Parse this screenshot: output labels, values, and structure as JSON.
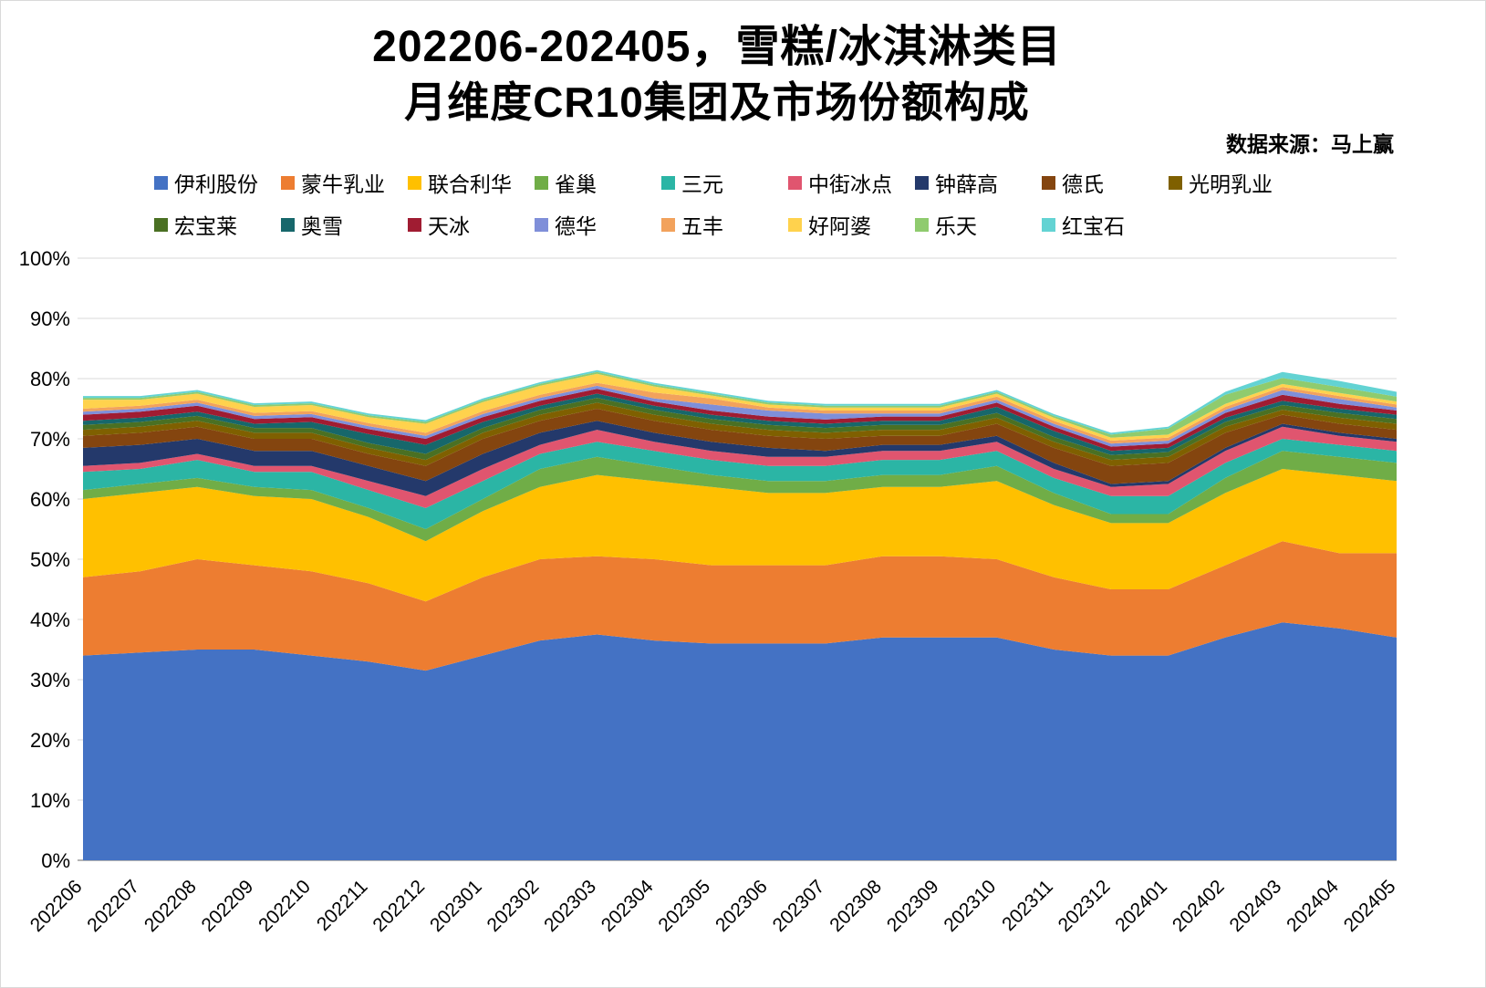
{
  "title": {
    "line1": "202206-202405，雪糕/冰淇淋类目",
    "line2": "月维度CR10集团及市场份额构成"
  },
  "source_note": "数据来源：马上赢",
  "chart_data": {
    "type": "area",
    "stacked": true,
    "grid": true,
    "legend_position": "top",
    "ylim": [
      0,
      100
    ],
    "y_ticks": [
      "0%",
      "10%",
      "20%",
      "30%",
      "40%",
      "50%",
      "60%",
      "70%",
      "80%",
      "90%",
      "100%"
    ],
    "categories": [
      "202206",
      "202207",
      "202208",
      "202209",
      "202210",
      "202211",
      "202212",
      "202301",
      "202302",
      "202303",
      "202304",
      "202305",
      "202306",
      "202307",
      "202308",
      "202309",
      "202310",
      "202311",
      "202312",
      "202401",
      "202402",
      "202403",
      "202404",
      "202405"
    ],
    "series": [
      {
        "name": "伊利股份",
        "color": "#4472C4",
        "values": [
          34,
          34.5,
          35,
          35,
          34,
          33,
          31.5,
          34,
          36.5,
          37.5,
          36.5,
          36,
          36,
          36,
          37,
          37,
          37,
          35,
          34,
          34,
          37,
          39.5,
          38.5,
          37
        ]
      },
      {
        "name": "蒙牛乳业",
        "color": "#ED7D31",
        "values": [
          13,
          13.5,
          15,
          14,
          14,
          13,
          11.5,
          13,
          13.5,
          13,
          13.5,
          13,
          13,
          13,
          13.5,
          13.5,
          13,
          12,
          11,
          11,
          12,
          13.5,
          12.5,
          14
        ]
      },
      {
        "name": "联合利华",
        "color": "#FFC000",
        "values": [
          13,
          13,
          12,
          11.5,
          12,
          11,
          10,
          11,
          12,
          13.5,
          13,
          13,
          12,
          12,
          11.5,
          11.5,
          13,
          12,
          11,
          11,
          12,
          12,
          13,
          12
        ]
      },
      {
        "name": "雀巢",
        "color": "#70AD47",
        "values": [
          1.5,
          1.5,
          1.5,
          1.5,
          1.5,
          1.5,
          2,
          2,
          3,
          3,
          2.5,
          2,
          2,
          2,
          2,
          2,
          2.5,
          2,
          1.5,
          1.5,
          2.5,
          3,
          3,
          3
        ]
      },
      {
        "name": "三元",
        "color": "#2BB5A5",
        "values": [
          3,
          2.5,
          3,
          2.5,
          3,
          3,
          3.5,
          3,
          2.5,
          2.5,
          2.5,
          2.5,
          2.5,
          2.5,
          2.5,
          2.5,
          2.5,
          2.5,
          3,
          3,
          2.5,
          2,
          2,
          2
        ]
      },
      {
        "name": "中街冰点",
        "color": "#E0556F",
        "values": [
          1,
          1,
          1,
          1,
          1,
          1.5,
          2,
          2,
          1.5,
          2,
          1.5,
          1.5,
          1.5,
          1.5,
          1.5,
          1.5,
          1.5,
          1.5,
          1.5,
          2,
          2,
          2,
          1.5,
          1.5
        ]
      },
      {
        "name": "钟薛高",
        "color": "#24396B",
        "values": [
          3,
          3,
          2.5,
          2.5,
          2.5,
          2.5,
          2.5,
          2.5,
          2,
          1.5,
          1.5,
          1.5,
          1.5,
          1,
          1,
          1,
          1,
          1,
          0.5,
          0.5,
          0.5,
          0.5,
          0.5,
          0.5
        ]
      },
      {
        "name": "德氏",
        "color": "#84450F",
        "values": [
          2,
          2,
          2,
          2,
          2,
          2,
          2.5,
          2.5,
          2,
          2,
          2,
          2,
          2,
          2,
          1.5,
          1.5,
          2,
          2.5,
          3,
          3,
          2.5,
          1.5,
          1.5,
          1.5
        ]
      },
      {
        "name": "光明乳业",
        "color": "#7F6000",
        "values": [
          1,
          1,
          1,
          1,
          1,
          1,
          1,
          1,
          1,
          1,
          1,
          1,
          1,
          1,
          1,
          1,
          1,
          1,
          1,
          1,
          1,
          0.8,
          1,
          1
        ]
      },
      {
        "name": "宏宝莱",
        "color": "#4A7023",
        "values": [
          0.8,
          0.8,
          0.8,
          0.8,
          0.8,
          0.8,
          1,
          0.8,
          0.8,
          0.8,
          0.8,
          0.8,
          0.8,
          0.8,
          0.8,
          0.8,
          0.8,
          0.8,
          0.8,
          0.8,
          0.8,
          0.8,
          0.8,
          0.8
        ]
      },
      {
        "name": "奥雪",
        "color": "#17676B",
        "values": [
          0.7,
          0.7,
          0.7,
          0.7,
          1,
          1.5,
          1.5,
          1,
          0.7,
          0.7,
          0.7,
          0.7,
          0.7,
          0.7,
          0.7,
          0.7,
          1,
          1,
          0.7,
          0.7,
          0.7,
          0.7,
          0.7,
          0.7
        ]
      },
      {
        "name": "天冰",
        "color": "#A01C32",
        "values": [
          1,
          1,
          1,
          0.8,
          0.8,
          0.8,
          1,
          0.8,
          0.8,
          0.8,
          0.7,
          0.7,
          0.7,
          0.7,
          0.7,
          0.7,
          0.7,
          0.7,
          0.7,
          0.7,
          0.8,
          1,
          0.8,
          0.7
        ]
      },
      {
        "name": "德华",
        "color": "#7F8FD9",
        "values": [
          0.5,
          0.5,
          0.5,
          0.5,
          0.5,
          0.5,
          0.5,
          0.5,
          0.5,
          0.5,
          0.5,
          1,
          1,
          1,
          0.5,
          0.5,
          0.5,
          0.5,
          0.5,
          0.5,
          0.5,
          0.8,
          0.8,
          0.5
        ]
      },
      {
        "name": "五丰",
        "color": "#F2A25C",
        "values": [
          0.5,
          0.5,
          0.5,
          0.5,
          0.5,
          0.5,
          0.5,
          0.5,
          0.5,
          0.5,
          1,
          1,
          0.5,
          0.5,
          0.5,
          0.5,
          0.5,
          0.5,
          0.5,
          0.5,
          0.5,
          0.5,
          0.5,
          0.5
        ]
      },
      {
        "name": "好阿婆",
        "color": "#FFD24D",
        "values": [
          1.5,
          1,
          1,
          1,
          1,
          1,
          1.5,
          1.5,
          1.5,
          1.5,
          1,
          0.5,
          0.5,
          0.5,
          0.5,
          0.5,
          0.5,
          0.5,
          0.5,
          0.5,
          0.5,
          0.5,
          0.5,
          0.5
        ]
      },
      {
        "name": "乐天",
        "color": "#8FCB6E",
        "values": [
          0.3,
          0.3,
          0.3,
          0.3,
          0.3,
          0.3,
          0.3,
          0.3,
          0.3,
          0.3,
          0.3,
          0.3,
          0.3,
          0.3,
          0.3,
          0.3,
          0.3,
          0.3,
          0.5,
          1,
          1.5,
          1,
          1,
          0.8
        ]
      },
      {
        "name": "红宝石",
        "color": "#63D3D3",
        "values": [
          0.3,
          0.3,
          0.3,
          0.3,
          0.3,
          0.3,
          0.3,
          0.3,
          0.3,
          0.3,
          0.3,
          0.3,
          0.3,
          0.3,
          0.3,
          0.3,
          0.3,
          0.3,
          0.3,
          0.3,
          0.5,
          1,
          1,
          0.8
        ]
      }
    ]
  }
}
